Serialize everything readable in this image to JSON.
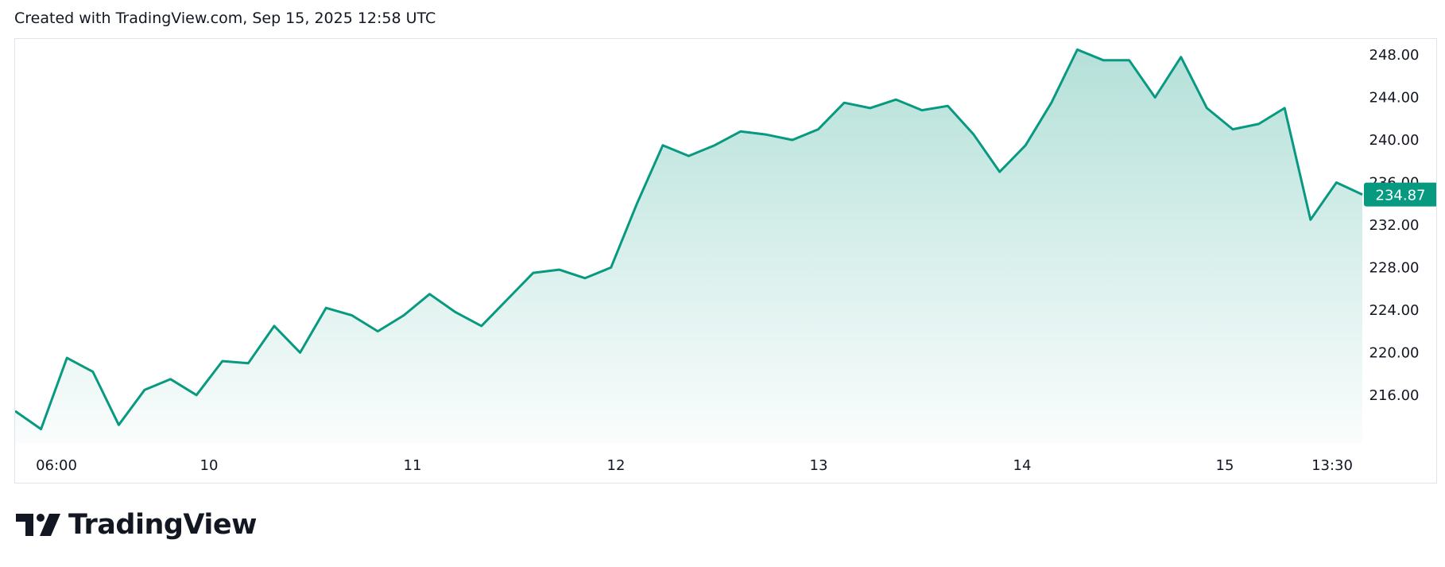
{
  "header": {
    "text": "Created with TradingView.com, Sep 15, 2025 12:58 UTC"
  },
  "brand": {
    "name": "TradingView",
    "logo_icon": "tradingview-logo-icon"
  },
  "colors": {
    "line": "#089981",
    "fill_top": "rgba(8,153,129,0.30)",
    "fill_bottom": "rgba(8,153,129,0.02)",
    "price_tag_bg": "#089981"
  },
  "chart_data": {
    "type": "area",
    "title": "",
    "xlabel": "",
    "ylabel": "",
    "x_ticks": [
      "06:00",
      "10",
      "11",
      "12",
      "13",
      "14",
      "15",
      "13:30"
    ],
    "y_ticks": [
      "216.00",
      "220.00",
      "224.00",
      "228.00",
      "232.00",
      "236.00",
      "240.00",
      "244.00",
      "248.00"
    ],
    "ylim": [
      211.5,
      249.5
    ],
    "last_price": "234.87",
    "x": [
      "Sep 9 03:00",
      "Sep 9 06:00",
      "Sep 9 09:00",
      "Sep 9 12:00",
      "Sep 9 15:00",
      "Sep 9 18:00",
      "Sep 9 21:00",
      "Sep 10 00:00",
      "Sep 10 03:00",
      "Sep 10 06:00",
      "Sep 10 09:00",
      "Sep 10 12:00",
      "Sep 10 15:00",
      "Sep 10 18:00",
      "Sep 10 21:00",
      "Sep 11 00:00",
      "Sep 11 03:00",
      "Sep 11 06:00",
      "Sep 11 09:00",
      "Sep 11 12:00",
      "Sep 11 15:00",
      "Sep 11 18:00",
      "Sep 11 21:00",
      "Sep 12 00:00",
      "Sep 12 03:00",
      "Sep 12 06:00",
      "Sep 12 09:00",
      "Sep 12 12:00",
      "Sep 12 15:00",
      "Sep 12 18:00",
      "Sep 12 21:00",
      "Sep 13 00:00",
      "Sep 13 03:00",
      "Sep 13 06:00",
      "Sep 13 09:00",
      "Sep 13 12:00",
      "Sep 13 15:00",
      "Sep 13 18:00",
      "Sep 13 21:00",
      "Sep 14 00:00",
      "Sep 14 03:00",
      "Sep 14 06:00",
      "Sep 14 09:00",
      "Sep 14 12:00",
      "Sep 14 15:00",
      "Sep 14 18:00",
      "Sep 14 21:00",
      "Sep 15 00:00",
      "Sep 15 03:00",
      "Sep 15 06:00",
      "Sep 15 09:00",
      "Sep 15 11:00",
      "Sep 15 12:58"
    ],
    "values": [
      214.5,
      212.8,
      219.5,
      218.2,
      213.2,
      216.5,
      217.5,
      216.0,
      219.2,
      219.0,
      222.5,
      220.0,
      224.2,
      223.5,
      222.0,
      223.5,
      225.5,
      223.8,
      222.5,
      225.0,
      227.5,
      227.8,
      227.0,
      228.0,
      234.0,
      239.5,
      238.5,
      239.5,
      240.8,
      240.5,
      240.0,
      241.0,
      243.5,
      243.0,
      243.8,
      242.8,
      243.2,
      240.5,
      237.0,
      239.5,
      243.5,
      248.5,
      247.5,
      247.5,
      244.0,
      247.8,
      243.0,
      241.0,
      241.5,
      243.0,
      232.5,
      236.0,
      234.87
    ]
  }
}
